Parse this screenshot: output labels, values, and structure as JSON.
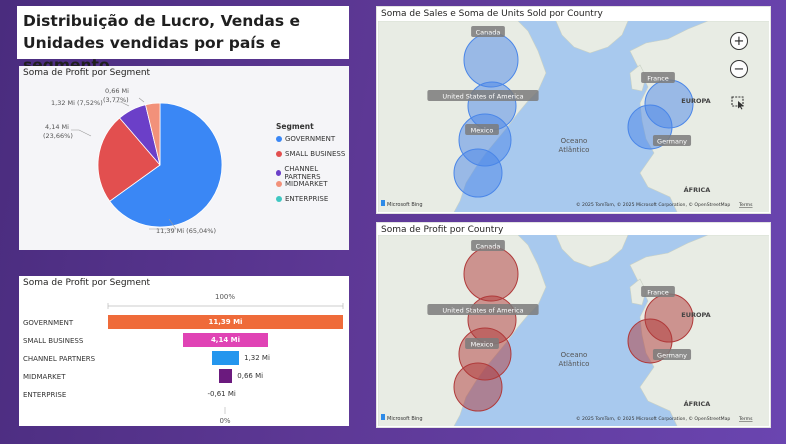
{
  "page_title": "Distribuição de Lucro, Vendas e Unidades vendidas por país e segmento",
  "pie_chart": {
    "title": "Soma de Profit por Segment",
    "legend_title": "Segment",
    "slices": [
      {
        "segment": "GOVERNMENT",
        "label": "11,39 Mi (65,04%)",
        "value": 11.39,
        "percent": 65.04,
        "color": "#3a87f5"
      },
      {
        "segment": "SMALL BUSINESS",
        "label": "4,14 Mi (23,66%)",
        "value": 4.14,
        "percent": 23.66,
        "color": "#e24f4f"
      },
      {
        "segment": "CHANNEL PARTNERS",
        "label": "1,32 Mi (7,52%)",
        "value": 1.32,
        "percent": 7.52,
        "color": "#6b3fc8"
      },
      {
        "segment": "MIDMARKET",
        "label": "0,66 Mi (3,77%)",
        "value": 0.66,
        "percent": 3.77,
        "color": "#f2917a"
      },
      {
        "segment": "ENTERPRISE",
        "label": "",
        "value": 0,
        "percent": 0,
        "color": "#3fc7c2"
      }
    ],
    "labels": {
      "government": "11,39 Mi (65,04%)",
      "small_business_1": "4,14 Mi",
      "small_business_2": "(23,66%)",
      "channel_partners": "1,32 Mi (7,52%)",
      "midmarket_1": "0,66 Mi",
      "midmarket_2": "(3,77%)"
    }
  },
  "funnel_chart": {
    "title": "Soma de Profit por Segment",
    "top_label": "100%",
    "bottom_label": "0%",
    "rows": [
      {
        "segment": "GOVERNMENT",
        "value_label": "11,39 Mi",
        "value": 11.39,
        "color": "#ef6b3a"
      },
      {
        "segment": "SMALL BUSINESS",
        "value_label": "4,14 Mi",
        "value": 4.14,
        "color": "#e043b5"
      },
      {
        "segment": "CHANNEL PARTNERS",
        "value_label": "1,32 Mi",
        "value": 1.32,
        "color": "#2496ee"
      },
      {
        "segment": "MIDMARKET",
        "value_label": "0,66 Mi",
        "value": 0.66,
        "color": "#6b1a7e"
      },
      {
        "segment": "ENTERPRISE",
        "value_label": "-0,61 Mi",
        "value": -0.61,
        "color": "#999999"
      }
    ]
  },
  "map_sales": {
    "title": "Soma de Sales e Soma de Units Sold por Country",
    "countries": {
      "canada": "Canada",
      "usa": "United States of America",
      "mexico": "Mexico",
      "france": "France",
      "germany": "Germany"
    },
    "regions": {
      "ocean_1": "Oceano",
      "ocean_2": "Atlântico",
      "europe": "EUROPA",
      "africa": "ÁFRICA"
    },
    "attribution": "© 2025 TomTom, © 2025 Microsoft Corporation, © OpenStreetMap",
    "terms": "Terms",
    "logo": "Microsoft Bing",
    "bubble_color": "#4a86e8"
  },
  "map_profit": {
    "title": "Soma de Profit por Country",
    "countries": {
      "canada": "Canada",
      "usa": "United States of America",
      "mexico": "Mexico",
      "france": "France",
      "germany": "Germany"
    },
    "regions": {
      "ocean_1": "Oceano",
      "ocean_2": "Atlântico",
      "europe": "EUROPA",
      "africa": "ÁFRICA"
    },
    "attribution": "© 2025 TomTom, © 2025 Microsoft Corporation, © OpenStreetMap",
    "terms": "Terms",
    "logo": "Microsoft Bing",
    "bubble_color": "#b03a3a"
  },
  "map_controls": {
    "zoom_in": "+",
    "zoom_out": "−"
  }
}
